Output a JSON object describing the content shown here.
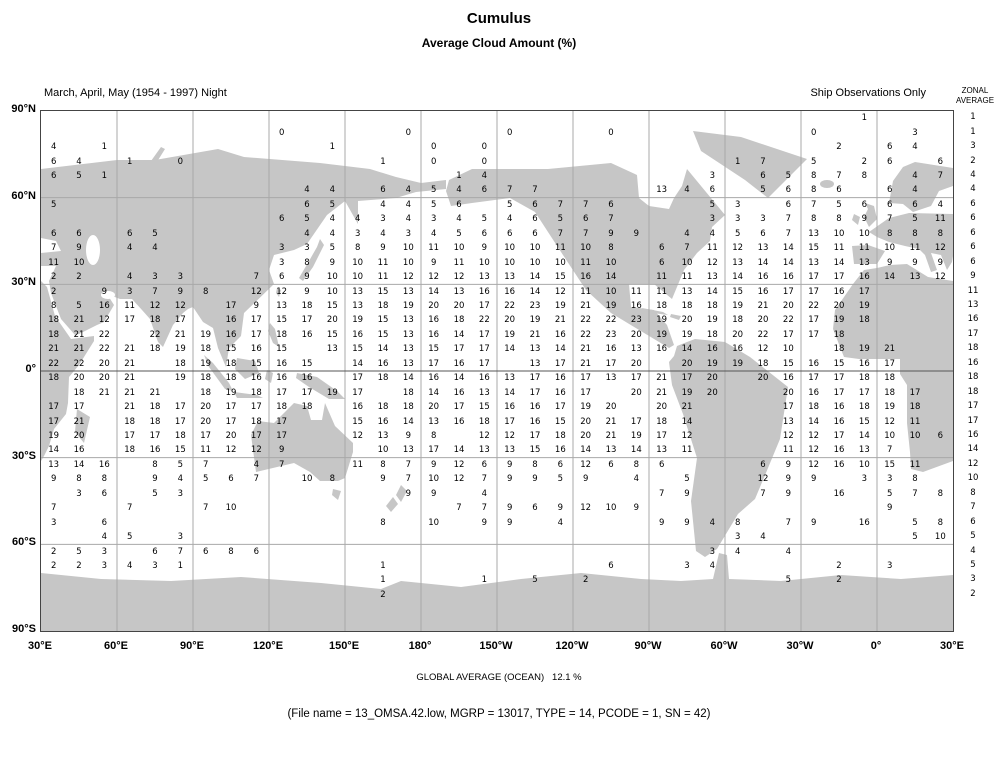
{
  "title": "Cumulus",
  "subtitle": "Average Cloud Amount (%)",
  "left_caption": "March, April, May (1954 - 1997) Night",
  "right_caption": "Ship Observations Only",
  "zonal_header": {
    "line1": "ZONAL",
    "line2": "AVERAGE"
  },
  "footer": {
    "global_average": "GLOBAL AVERAGE (OCEAN)   12.1 %",
    "file_info": "(File name = 13_OMSA.42.low, MGRP = 13017, TYPE = 14, PCODE = 1, SN = 42)"
  },
  "axes": {
    "lat_labels": [
      "90°N",
      "60°N",
      "30°N",
      "0°",
      "30°S",
      "60°S",
      "90°S"
    ],
    "lon_labels": [
      "30°E",
      "60°E",
      "90°E",
      "120°E",
      "150°E",
      "180°",
      "150°W",
      "120°W",
      "90°W",
      "60°W",
      "30°W",
      "0°",
      "30°E"
    ]
  },
  "colors": {
    "land": "#c6c6c6",
    "grid": "#a8a8a8",
    "equator": "#555555",
    "text": "#000000"
  },
  "chart_data": {
    "type": "heatmap",
    "title": "Cumulus — Average Cloud Amount (%)",
    "season": "March, April, May (1954 - 1997) Night",
    "source": "Ship Observations Only",
    "global_average_ocean_percent": 12.1,
    "lat_band_degrees": 5,
    "lon_band_degrees": 10,
    "first_row_lat_center": 87.5,
    "first_col_lon_center_east": 35,
    "zonal_average": [
      1,
      1,
      3,
      2,
      4,
      4,
      6,
      6,
      6,
      6,
      6,
      9,
      11,
      13,
      16,
      17,
      18,
      16,
      18,
      18,
      17,
      17,
      16,
      14,
      12,
      10,
      8,
      7,
      6,
      5,
      4,
      5,
      3,
      2
    ],
    "grid": [
      [
        null,
        null,
        null,
        null,
        null,
        null,
        null,
        null,
        null,
        null,
        null,
        null,
        null,
        null,
        null,
        null,
        null,
        null,
        null,
        null,
        null,
        null,
        null,
        null,
        null,
        null,
        null,
        null,
        null,
        null,
        null,
        null,
        1,
        null,
        null,
        null
      ],
      [
        null,
        null,
        null,
        null,
        null,
        null,
        null,
        null,
        null,
        0,
        null,
        null,
        null,
        null,
        0,
        null,
        null,
        null,
        0,
        null,
        null,
        null,
        0,
        null,
        null,
        null,
        null,
        null,
        null,
        null,
        0,
        null,
        null,
        null,
        3,
        null
      ],
      [
        4,
        null,
        1,
        null,
        null,
        null,
        null,
        null,
        null,
        null,
        null,
        1,
        null,
        null,
        null,
        0,
        null,
        0,
        null,
        null,
        null,
        null,
        null,
        null,
        null,
        null,
        null,
        null,
        null,
        null,
        null,
        2,
        null,
        6,
        4,
        null
      ],
      [
        6,
        4,
        null,
        1,
        null,
        0,
        null,
        null,
        null,
        null,
        null,
        null,
        null,
        1,
        null,
        0,
        null,
        0,
        null,
        null,
        null,
        null,
        null,
        null,
        null,
        null,
        null,
        1,
        7,
        null,
        5,
        null,
        2,
        6,
        null,
        6
      ],
      [
        6,
        5,
        1,
        null,
        null,
        null,
        null,
        null,
        null,
        null,
        null,
        null,
        null,
        null,
        null,
        null,
        1,
        4,
        null,
        null,
        null,
        null,
        null,
        null,
        null,
        null,
        3,
        null,
        6,
        5,
        8,
        7,
        8,
        null,
        4,
        7
      ],
      [
        null,
        null,
        null,
        null,
        null,
        null,
        null,
        null,
        null,
        null,
        4,
        4,
        null,
        6,
        4,
        5,
        4,
        6,
        7,
        7,
        null,
        null,
        null,
        null,
        13,
        4,
        6,
        null,
        5,
        6,
        8,
        6,
        null,
        6,
        4,
        null
      ],
      [
        5,
        null,
        null,
        null,
        null,
        null,
        null,
        null,
        null,
        null,
        6,
        5,
        null,
        4,
        4,
        5,
        6,
        null,
        5,
        6,
        7,
        7,
        6,
        null,
        null,
        null,
        5,
        3,
        null,
        6,
        7,
        5,
        6,
        6,
        6,
        4
      ],
      [
        null,
        null,
        null,
        null,
        null,
        null,
        null,
        null,
        null,
        6,
        5,
        4,
        4,
        3,
        4,
        3,
        4,
        5,
        4,
        6,
        5,
        6,
        7,
        null,
        null,
        null,
        3,
        3,
        3,
        7,
        8,
        8,
        9,
        7,
        5,
        11
      ],
      [
        6,
        6,
        null,
        6,
        5,
        null,
        null,
        null,
        null,
        null,
        4,
        4,
        3,
        4,
        3,
        4,
        5,
        6,
        6,
        6,
        7,
        7,
        9,
        9,
        null,
        4,
        4,
        5,
        6,
        7,
        13,
        10,
        10,
        8,
        8,
        8
      ],
      [
        7,
        9,
        null,
        4,
        4,
        null,
        null,
        null,
        null,
        3,
        3,
        5,
        8,
        9,
        10,
        11,
        10,
        9,
        10,
        10,
        11,
        10,
        8,
        null,
        6,
        7,
        11,
        12,
        13,
        14,
        15,
        11,
        11,
        10,
        11,
        12
      ],
      [
        11,
        10,
        null,
        null,
        null,
        null,
        null,
        null,
        null,
        3,
        8,
        9,
        10,
        11,
        10,
        9,
        11,
        10,
        10,
        10,
        10,
        11,
        10,
        null,
        6,
        10,
        12,
        13,
        14,
        14,
        13,
        14,
        13,
        9,
        9,
        9
      ],
      [
        2,
        2,
        null,
        4,
        3,
        3,
        null,
        null,
        7,
        6,
        9,
        10,
        10,
        11,
        12,
        12,
        12,
        13,
        13,
        14,
        15,
        16,
        14,
        null,
        11,
        11,
        13,
        14,
        16,
        16,
        17,
        17,
        16,
        14,
        13,
        12
      ],
      [
        2,
        null,
        9,
        3,
        7,
        9,
        8,
        null,
        12,
        12,
        9,
        10,
        13,
        15,
        13,
        14,
        13,
        16,
        16,
        14,
        12,
        11,
        10,
        11,
        11,
        13,
        14,
        15,
        16,
        17,
        17,
        16,
        17,
        null,
        null,
        null
      ],
      [
        8,
        5,
        16,
        11,
        12,
        12,
        null,
        17,
        9,
        13,
        18,
        15,
        13,
        18,
        19,
        20,
        20,
        17,
        22,
        23,
        19,
        21,
        19,
        16,
        18,
        18,
        18,
        19,
        21,
        20,
        22,
        20,
        19,
        null,
        null,
        null
      ],
      [
        18,
        21,
        12,
        17,
        18,
        17,
        null,
        16,
        17,
        15,
        17,
        20,
        19,
        15,
        13,
        16,
        18,
        22,
        20,
        19,
        21,
        22,
        22,
        23,
        19,
        20,
        19,
        18,
        20,
        22,
        17,
        19,
        18,
        null,
        null,
        null
      ],
      [
        18,
        21,
        22,
        null,
        22,
        21,
        19,
        16,
        17,
        18,
        16,
        15,
        16,
        15,
        13,
        16,
        14,
        17,
        19,
        21,
        16,
        22,
        23,
        20,
        19,
        19,
        18,
        20,
        22,
        17,
        17,
        18,
        null,
        null,
        null,
        null
      ],
      [
        21,
        21,
        22,
        21,
        18,
        19,
        18,
        15,
        16,
        15,
        null,
        13,
        15,
        14,
        13,
        15,
        17,
        17,
        14,
        13,
        14,
        21,
        16,
        13,
        16,
        14,
        16,
        16,
        12,
        10,
        null,
        18,
        19,
        21,
        null,
        null
      ],
      [
        22,
        22,
        20,
        21,
        null,
        18,
        19,
        18,
        15,
        16,
        15,
        null,
        14,
        16,
        13,
        17,
        16,
        17,
        null,
        13,
        17,
        21,
        17,
        20,
        null,
        20,
        19,
        19,
        18,
        15,
        16,
        15,
        16,
        17,
        null,
        null
      ],
      [
        18,
        20,
        20,
        21,
        null,
        19,
        18,
        18,
        16,
        16,
        16,
        null,
        17,
        18,
        14,
        16,
        14,
        16,
        13,
        17,
        16,
        17,
        13,
        17,
        21,
        17,
        20,
        null,
        20,
        16,
        17,
        17,
        18,
        18,
        null,
        null
      ],
      [
        null,
        18,
        21,
        21,
        21,
        null,
        18,
        19,
        18,
        17,
        17,
        19,
        17,
        null,
        18,
        14,
        16,
        13,
        14,
        17,
        16,
        17,
        null,
        20,
        21,
        19,
        20,
        null,
        null,
        20,
        16,
        17,
        17,
        18,
        17,
        null
      ],
      [
        17,
        17,
        null,
        21,
        18,
        17,
        20,
        17,
        17,
        18,
        18,
        null,
        16,
        18,
        18,
        20,
        17,
        15,
        16,
        16,
        17,
        19,
        20,
        null,
        20,
        21,
        null,
        null,
        null,
        17,
        18,
        16,
        18,
        19,
        18,
        null
      ],
      [
        17,
        21,
        null,
        18,
        18,
        17,
        20,
        17,
        18,
        17,
        null,
        null,
        15,
        16,
        14,
        13,
        16,
        18,
        17,
        16,
        15,
        20,
        21,
        17,
        18,
        14,
        null,
        null,
        null,
        13,
        14,
        16,
        15,
        12,
        11,
        null
      ],
      [
        19,
        20,
        null,
        17,
        17,
        18,
        17,
        20,
        17,
        17,
        null,
        null,
        12,
        13,
        9,
        8,
        null,
        12,
        12,
        17,
        18,
        20,
        21,
        19,
        17,
        12,
        null,
        null,
        null,
        12,
        12,
        17,
        14,
        10,
        10,
        6
      ],
      [
        14,
        16,
        null,
        18,
        16,
        15,
        11,
        12,
        12,
        9,
        null,
        null,
        null,
        10,
        13,
        17,
        14,
        13,
        13,
        15,
        16,
        14,
        13,
        14,
        13,
        11,
        null,
        null,
        null,
        11,
        12,
        16,
        13,
        7,
        null,
        null
      ],
      [
        13,
        14,
        16,
        null,
        8,
        5,
        7,
        null,
        4,
        7,
        null,
        null,
        11,
        8,
        7,
        9,
        12,
        6,
        9,
        8,
        6,
        12,
        6,
        8,
        6,
        null,
        null,
        null,
        6,
        9,
        12,
        16,
        10,
        15,
        11,
        null
      ],
      [
        9,
        8,
        8,
        null,
        9,
        4,
        5,
        6,
        7,
        null,
        10,
        8,
        null,
        9,
        7,
        10,
        12,
        7,
        9,
        9,
        5,
        9,
        null,
        4,
        null,
        5,
        null,
        null,
        12,
        9,
        9,
        null,
        3,
        3,
        8,
        null
      ],
      [
        null,
        3,
        6,
        null,
        5,
        3,
        null,
        null,
        null,
        null,
        null,
        null,
        null,
        null,
        9,
        9,
        null,
        4,
        null,
        null,
        null,
        null,
        null,
        null,
        7,
        9,
        null,
        null,
        7,
        9,
        null,
        16,
        null,
        5,
        7,
        8
      ],
      [
        7,
        null,
        null,
        7,
        null,
        null,
        7,
        10,
        null,
        null,
        null,
        null,
        null,
        null,
        null,
        null,
        7,
        7,
        9,
        6,
        9,
        12,
        10,
        9,
        null,
        null,
        null,
        null,
        null,
        null,
        null,
        null,
        null,
        9,
        null,
        null
      ],
      [
        3,
        null,
        6,
        null,
        null,
        null,
        null,
        null,
        null,
        null,
        null,
        null,
        null,
        8,
        null,
        10,
        null,
        9,
        9,
        null,
        4,
        null,
        null,
        null,
        9,
        9,
        4,
        8,
        null,
        7,
        9,
        null,
        16,
        null,
        5,
        8
      ],
      [
        null,
        null,
        4,
        5,
        null,
        3,
        null,
        null,
        null,
        null,
        null,
        null,
        null,
        null,
        null,
        null,
        null,
        null,
        null,
        null,
        null,
        null,
        null,
        null,
        null,
        null,
        null,
        3,
        4,
        null,
        null,
        null,
        null,
        null,
        5,
        10
      ],
      [
        2,
        5,
        3,
        null,
        6,
        7,
        6,
        8,
        6,
        null,
        null,
        null,
        null,
        null,
        null,
        null,
        null,
        null,
        null,
        null,
        null,
        null,
        null,
        null,
        null,
        null,
        3,
        4,
        null,
        4,
        null,
        null,
        null,
        null,
        null,
        null
      ],
      [
        2,
        2,
        3,
        4,
        3,
        1,
        null,
        null,
        null,
        null,
        null,
        null,
        null,
        1,
        null,
        null,
        null,
        null,
        null,
        null,
        null,
        null,
        6,
        null,
        null,
        3,
        4,
        null,
        null,
        null,
        null,
        2,
        null,
        3,
        null,
        null
      ],
      [
        null,
        null,
        null,
        null,
        null,
        null,
        null,
        null,
        null,
        null,
        null,
        null,
        null,
        1,
        null,
        null,
        null,
        1,
        null,
        5,
        null,
        2,
        null,
        null,
        null,
        null,
        null,
        null,
        null,
        5,
        null,
        2,
        null,
        null,
        null,
        null
      ],
      [
        null,
        null,
        null,
        null,
        null,
        null,
        null,
        null,
        null,
        null,
        null,
        null,
        null,
        2,
        null,
        null,
        null,
        null,
        null,
        null,
        null,
        null,
        null,
        null,
        null,
        null,
        null,
        null,
        null,
        null,
        null,
        null,
        null,
        null,
        null,
        null
      ]
    ]
  }
}
